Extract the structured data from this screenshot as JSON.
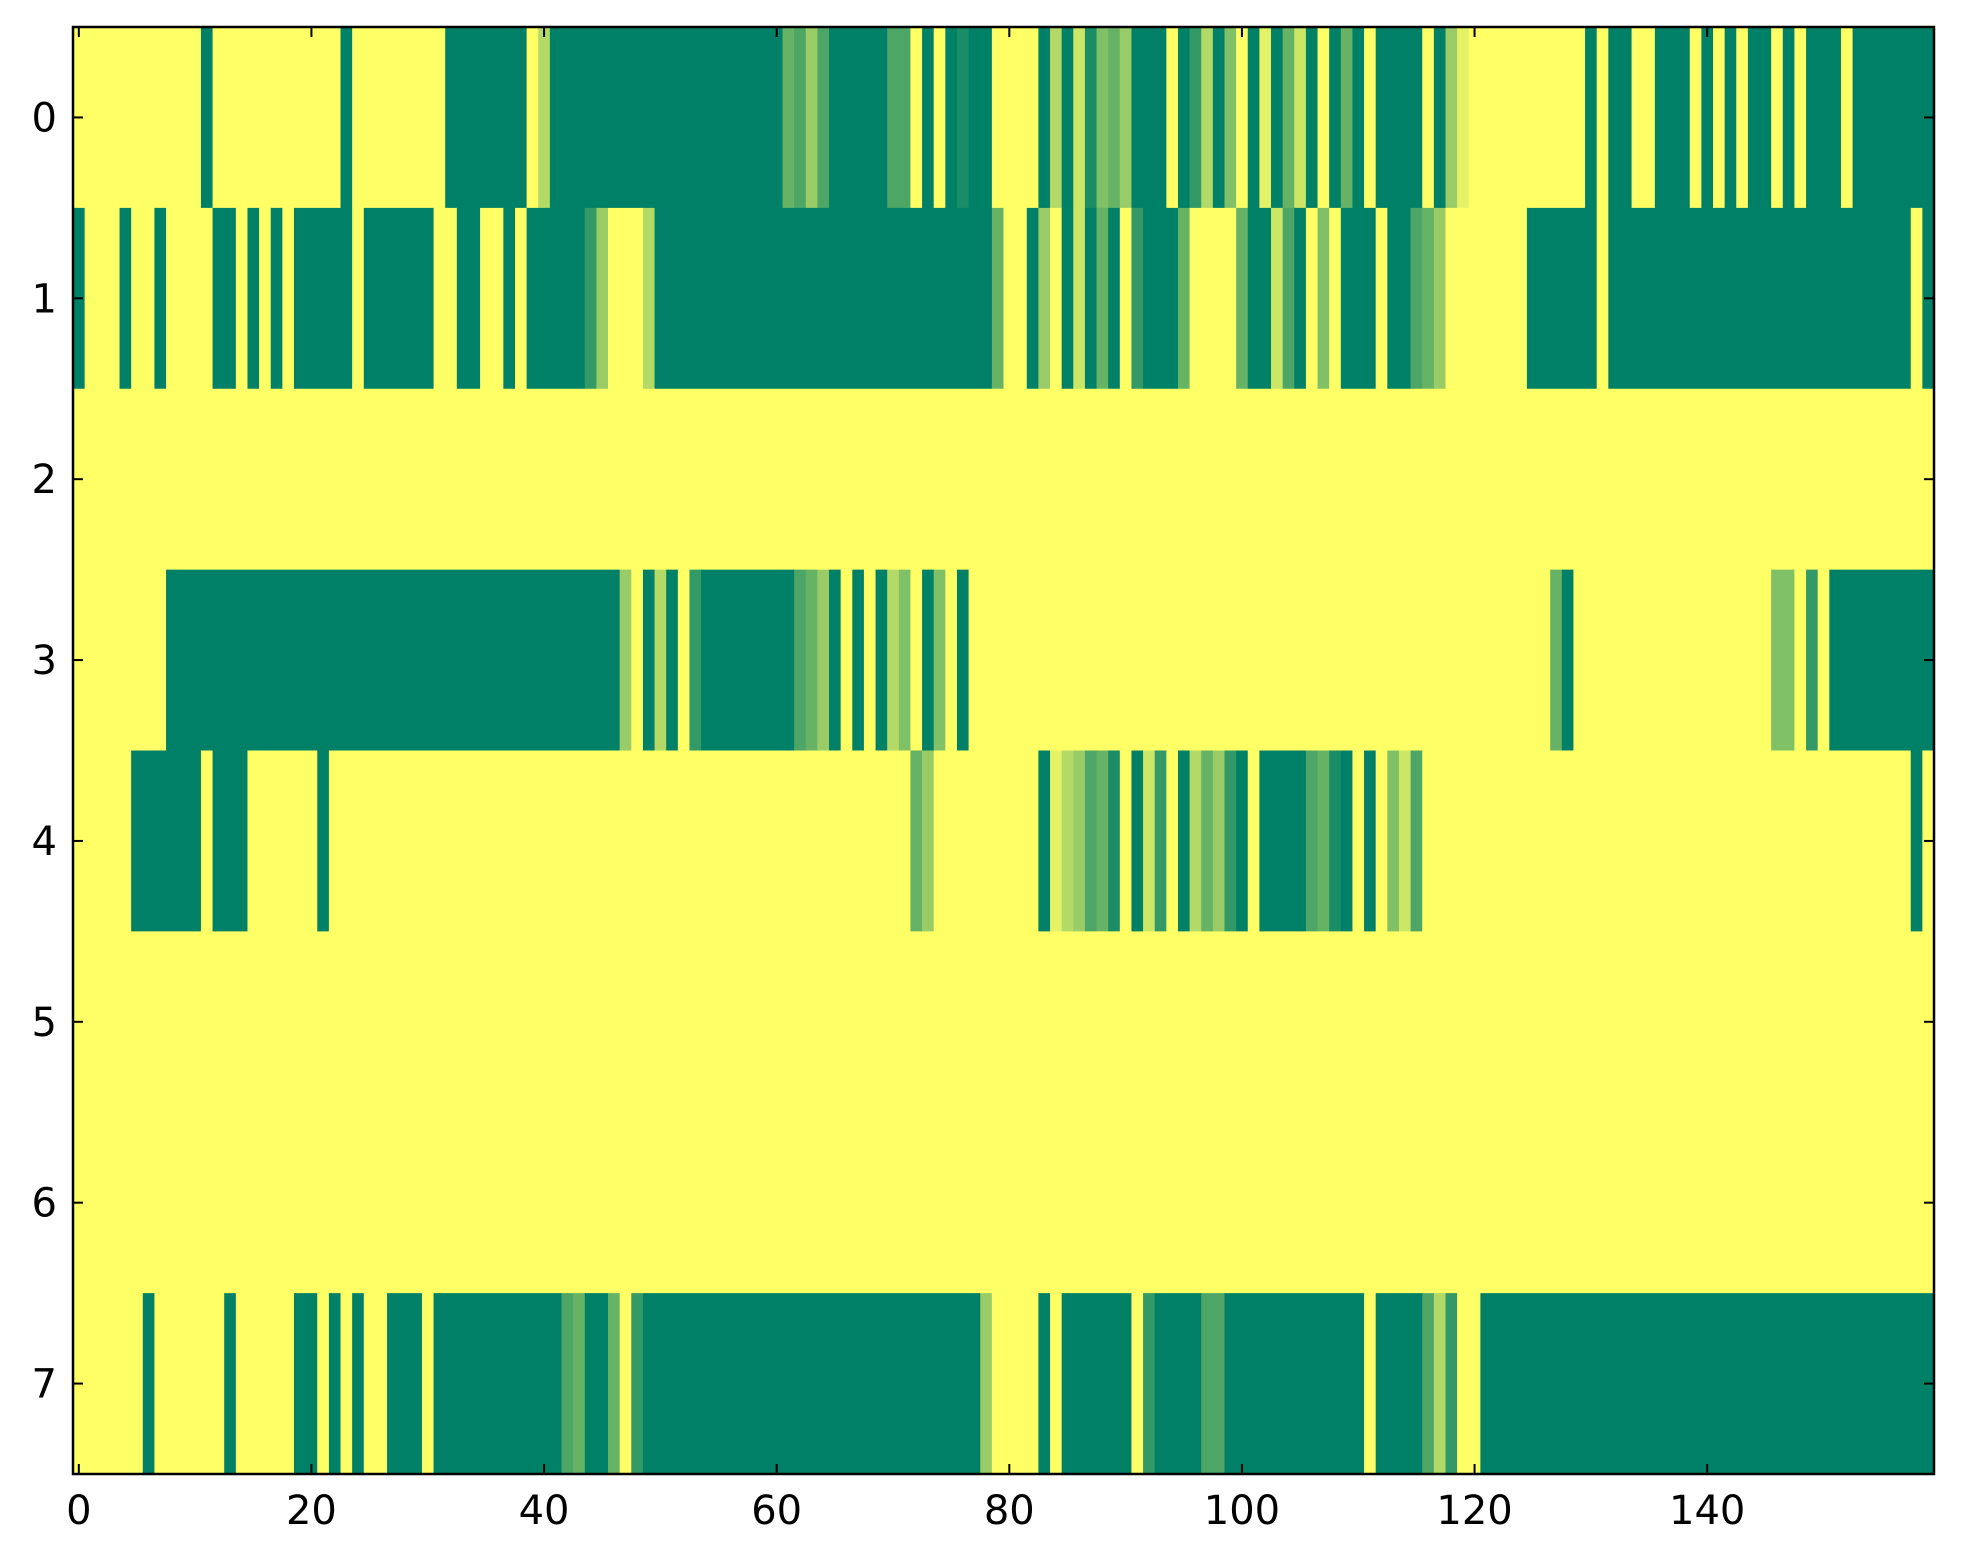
{
  "chart_data": {
    "type": "heatmap",
    "title": "",
    "xlabel": "",
    "ylabel": "",
    "colormap": "summer",
    "colors": {
      "low": "#008066",
      "high": "#ffff66",
      "axis": "#000000"
    },
    "xlim": [
      -0.5,
      159.5
    ],
    "ylim": [
      7.5,
      -0.5
    ],
    "x_ticks": [
      0,
      20,
      40,
      60,
      80,
      100,
      120,
      140
    ],
    "x_tick_labels": [
      "0",
      "20",
      "40",
      "60",
      "80",
      "100",
      "120",
      "140"
    ],
    "y_ticks": [
      0,
      1,
      2,
      3,
      4,
      5,
      6,
      7
    ],
    "y_tick_labels": [
      "0",
      "1",
      "2",
      "3",
      "4",
      "5",
      "6",
      "7"
    ],
    "grid": false,
    "legend": "none",
    "value_scale": "0 = dark green, 1 = yellow; intermediate shades shown as fractions",
    "rows": [
      {
        "row": 0,
        "segments": [
          [
            0,
            11,
            1
          ],
          [
            11,
            12,
            0
          ],
          [
            12,
            23,
            1
          ],
          [
            23,
            24,
            0
          ],
          [
            24,
            32,
            1
          ],
          [
            32,
            39,
            0
          ],
          [
            39,
            40,
            1
          ],
          [
            40,
            41,
            0.7
          ],
          [
            41,
            61,
            0
          ],
          [
            61,
            62,
            0.4
          ],
          [
            62,
            63,
            0.3
          ],
          [
            63,
            64,
            0.6
          ],
          [
            64,
            65,
            0.3
          ],
          [
            65,
            70,
            0
          ],
          [
            70,
            72,
            0.3
          ],
          [
            72,
            73,
            1
          ],
          [
            73,
            74,
            0
          ],
          [
            74,
            75,
            1
          ],
          [
            75,
            76,
            0
          ],
          [
            76,
            77,
            0.1
          ],
          [
            77,
            79,
            0
          ],
          [
            79,
            83,
            1
          ],
          [
            83,
            84,
            0
          ],
          [
            84,
            85,
            0.7
          ],
          [
            85,
            86,
            0
          ],
          [
            86,
            87,
            0.8
          ],
          [
            87,
            88,
            0.1
          ],
          [
            88,
            89,
            0.5
          ],
          [
            89,
            90,
            0.4
          ],
          [
            90,
            91,
            0.6
          ],
          [
            91,
            94,
            0
          ],
          [
            94,
            95,
            1
          ],
          [
            95,
            96,
            0
          ],
          [
            96,
            97,
            0.2
          ],
          [
            97,
            98,
            0.7
          ],
          [
            98,
            99,
            0
          ],
          [
            99,
            100,
            0.5
          ],
          [
            100,
            101,
            1
          ],
          [
            101,
            102,
            0
          ],
          [
            102,
            103,
            0.9
          ],
          [
            103,
            104,
            0
          ],
          [
            104,
            105,
            0.4
          ],
          [
            105,
            106,
            0.8
          ],
          [
            106,
            107,
            0
          ],
          [
            107,
            108,
            1
          ],
          [
            108,
            109,
            0
          ],
          [
            109,
            110,
            0.4
          ],
          [
            110,
            111,
            0
          ],
          [
            111,
            112,
            1
          ],
          [
            112,
            116,
            0
          ],
          [
            116,
            117,
            1
          ],
          [
            117,
            118,
            0
          ],
          [
            118,
            119,
            0.6
          ],
          [
            119,
            120,
            0.9
          ],
          [
            120,
            130,
            1
          ],
          [
            130,
            131,
            0
          ],
          [
            131,
            132,
            1
          ],
          [
            132,
            134,
            0
          ],
          [
            134,
            136,
            1
          ],
          [
            136,
            139,
            0
          ],
          [
            139,
            140,
            1
          ],
          [
            140,
            141,
            0
          ],
          [
            141,
            142,
            1
          ],
          [
            142,
            143,
            0
          ],
          [
            143,
            144,
            1
          ],
          [
            144,
            146,
            0
          ],
          [
            146,
            147,
            1
          ],
          [
            147,
            148,
            0
          ],
          [
            148,
            149,
            1
          ],
          [
            149,
            152,
            0
          ],
          [
            152,
            153,
            1
          ],
          [
            153,
            160,
            0
          ]
        ]
      },
      {
        "row": 1,
        "segments": [
          [
            0,
            1,
            0
          ],
          [
            1,
            4,
            1
          ],
          [
            4,
            5,
            0
          ],
          [
            5,
            7,
            1
          ],
          [
            7,
            8,
            0
          ],
          [
            8,
            12,
            1
          ],
          [
            12,
            14,
            0
          ],
          [
            14,
            15,
            1
          ],
          [
            15,
            16,
            0
          ],
          [
            16,
            17,
            1
          ],
          [
            17,
            18,
            0
          ],
          [
            18,
            19,
            1
          ],
          [
            19,
            24,
            0
          ],
          [
            24,
            25,
            1
          ],
          [
            25,
            31,
            0
          ],
          [
            31,
            33,
            1
          ],
          [
            33,
            35,
            0
          ],
          [
            35,
            37,
            1
          ],
          [
            37,
            38,
            0
          ],
          [
            38,
            39,
            1
          ],
          [
            39,
            44,
            0
          ],
          [
            44,
            45,
            0.2
          ],
          [
            45,
            46,
            0.6
          ],
          [
            46,
            49,
            1
          ],
          [
            49,
            50,
            0.7
          ],
          [
            50,
            79,
            0
          ],
          [
            79,
            80,
            0.4
          ],
          [
            80,
            82,
            1
          ],
          [
            82,
            83,
            0
          ],
          [
            83,
            84,
            0.6
          ],
          [
            84,
            85,
            1
          ],
          [
            85,
            86,
            0
          ],
          [
            86,
            87,
            0.8
          ],
          [
            87,
            88,
            0
          ],
          [
            88,
            89,
            0.4
          ],
          [
            89,
            90,
            0
          ],
          [
            90,
            91,
            1
          ],
          [
            91,
            92,
            0.2
          ],
          [
            92,
            95,
            0
          ],
          [
            95,
            96,
            0.4
          ],
          [
            96,
            100,
            1
          ],
          [
            100,
            101,
            0.4
          ],
          [
            101,
            103,
            0
          ],
          [
            103,
            104,
            0.8
          ],
          [
            104,
            105,
            0.3
          ],
          [
            105,
            106,
            0
          ],
          [
            106,
            107,
            1
          ],
          [
            107,
            108,
            0.5
          ],
          [
            108,
            109,
            1
          ],
          [
            109,
            112,
            0
          ],
          [
            112,
            113,
            1
          ],
          [
            113,
            115,
            0
          ],
          [
            115,
            116,
            0.3
          ],
          [
            116,
            117,
            0.4
          ],
          [
            117,
            118,
            0.6
          ],
          [
            118,
            125,
            1
          ],
          [
            125,
            131,
            0
          ],
          [
            131,
            132,
            1
          ],
          [
            132,
            158,
            0
          ],
          [
            158,
            159,
            1
          ],
          [
            159,
            160,
            0
          ]
        ]
      },
      {
        "row": 2,
        "segments": [
          [
            0,
            160,
            1
          ]
        ]
      },
      {
        "row": 3,
        "segments": [
          [
            0,
            8,
            1
          ],
          [
            8,
            47,
            0
          ],
          [
            47,
            48,
            0.6
          ],
          [
            48,
            49,
            1
          ],
          [
            49,
            50,
            0
          ],
          [
            50,
            51,
            0.7
          ],
          [
            51,
            52,
            0
          ],
          [
            52,
            53,
            1
          ],
          [
            53,
            54,
            0.2
          ],
          [
            54,
            62,
            0
          ],
          [
            62,
            63,
            0.3
          ],
          [
            63,
            64,
            0.4
          ],
          [
            64,
            65,
            0.6
          ],
          [
            65,
            66,
            0
          ],
          [
            66,
            67,
            1
          ],
          [
            67,
            68,
            0
          ],
          [
            68,
            69,
            1
          ],
          [
            69,
            70,
            0
          ],
          [
            70,
            71,
            0.7
          ],
          [
            71,
            72,
            0.5
          ],
          [
            72,
            73,
            1
          ],
          [
            73,
            74,
            0
          ],
          [
            74,
            75,
            0.5
          ],
          [
            75,
            76,
            1
          ],
          [
            76,
            77,
            0
          ],
          [
            77,
            127,
            1
          ],
          [
            127,
            128,
            0.4
          ],
          [
            128,
            129,
            0
          ],
          [
            129,
            146,
            1
          ],
          [
            146,
            147,
            0.5
          ],
          [
            147,
            148,
            0.5
          ],
          [
            148,
            149,
            1
          ],
          [
            149,
            150,
            0.2
          ],
          [
            150,
            151,
            1
          ],
          [
            151,
            160,
            0
          ]
        ]
      },
      {
        "row": 4,
        "segments": [
          [
            0,
            5,
            1
          ],
          [
            5,
            11,
            0
          ],
          [
            11,
            12,
            1
          ],
          [
            12,
            15,
            0
          ],
          [
            15,
            21,
            1
          ],
          [
            21,
            22,
            0
          ],
          [
            22,
            72,
            1
          ],
          [
            72,
            73,
            0.4
          ],
          [
            73,
            74,
            0.6
          ],
          [
            74,
            83,
            1
          ],
          [
            83,
            84,
            0
          ],
          [
            84,
            85,
            0.9
          ],
          [
            85,
            86,
            0.7
          ],
          [
            86,
            87,
            0.6
          ],
          [
            87,
            88,
            0.3
          ],
          [
            88,
            89,
            0.4
          ],
          [
            89,
            90,
            0.1
          ],
          [
            90,
            91,
            1
          ],
          [
            91,
            92,
            0
          ],
          [
            92,
            93,
            0.8
          ],
          [
            93,
            94,
            0.2
          ],
          [
            94,
            95,
            1
          ],
          [
            95,
            96,
            0
          ],
          [
            96,
            97,
            0.7
          ],
          [
            97,
            98,
            0.4
          ],
          [
            98,
            99,
            0.6
          ],
          [
            99,
            100,
            0.2
          ],
          [
            100,
            101,
            0
          ],
          [
            101,
            102,
            1
          ],
          [
            102,
            106,
            0
          ],
          [
            106,
            107,
            0.3
          ],
          [
            107,
            108,
            0.4
          ],
          [
            108,
            109,
            0.1
          ],
          [
            109,
            110,
            0
          ],
          [
            110,
            111,
            1
          ],
          [
            111,
            112,
            0
          ],
          [
            112,
            113,
            1
          ],
          [
            113,
            114,
            0.5
          ],
          [
            114,
            115,
            0.8
          ],
          [
            115,
            116,
            0.3
          ],
          [
            116,
            158,
            1
          ],
          [
            158,
            159,
            0
          ],
          [
            159,
            160,
            1
          ]
        ]
      },
      {
        "row": 5,
        "segments": [
          [
            0,
            160,
            1
          ]
        ]
      },
      {
        "row": 6,
        "segments": [
          [
            0,
            160,
            1
          ]
        ]
      },
      {
        "row": 7,
        "segments": [
          [
            0,
            6,
            1
          ],
          [
            6,
            7,
            0
          ],
          [
            7,
            13,
            1
          ],
          [
            13,
            14,
            0
          ],
          [
            14,
            19,
            1
          ],
          [
            19,
            21,
            0
          ],
          [
            21,
            22,
            1
          ],
          [
            22,
            23,
            0
          ],
          [
            23,
            24,
            1
          ],
          [
            24,
            25,
            0
          ],
          [
            25,
            27,
            1
          ],
          [
            27,
            30,
            0
          ],
          [
            30,
            31,
            1
          ],
          [
            31,
            42,
            0
          ],
          [
            42,
            43,
            0.3
          ],
          [
            43,
            44,
            0.4
          ],
          [
            44,
            46,
            0
          ],
          [
            46,
            47,
            0.4
          ],
          [
            47,
            48,
            1
          ],
          [
            48,
            49,
            0.2
          ],
          [
            49,
            78,
            0
          ],
          [
            78,
            79,
            0.6
          ],
          [
            79,
            83,
            1
          ],
          [
            83,
            84,
            0
          ],
          [
            84,
            85,
            1
          ],
          [
            85,
            91,
            0
          ],
          [
            91,
            92,
            1
          ],
          [
            92,
            93,
            0.2
          ],
          [
            93,
            97,
            0
          ],
          [
            97,
            99,
            0.3
          ],
          [
            99,
            111,
            0
          ],
          [
            111,
            112,
            1
          ],
          [
            112,
            116,
            0
          ],
          [
            116,
            117,
            0.3
          ],
          [
            117,
            118,
            0.7
          ],
          [
            118,
            119,
            0.2
          ],
          [
            119,
            121,
            1
          ],
          [
            121,
            160,
            0
          ]
        ]
      }
    ]
  }
}
